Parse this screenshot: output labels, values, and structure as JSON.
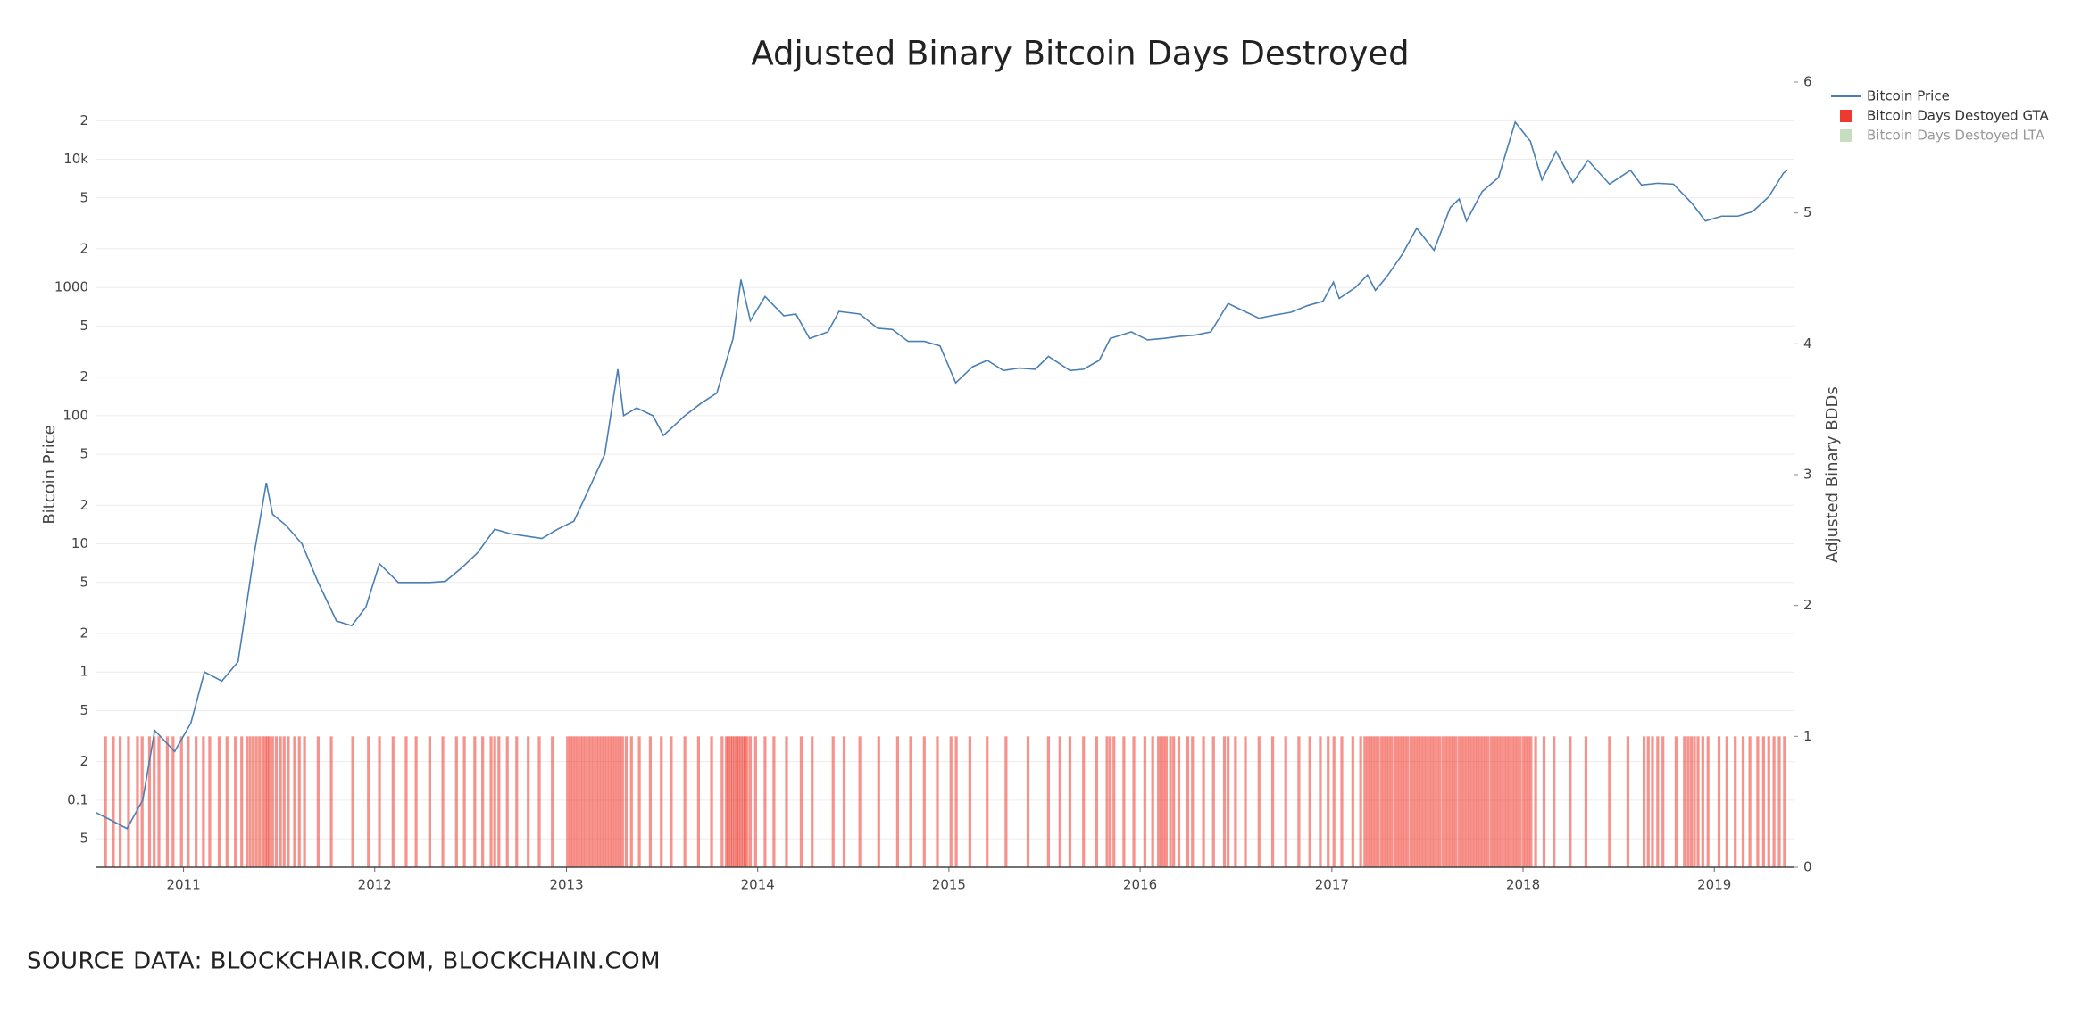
{
  "chart_data": {
    "type": "combo",
    "title": "Adjusted Binary Bitcoin Days Destroyed",
    "y_label": "Bitcoin Price",
    "y2_label": "Adjusted Binary BDDs",
    "source": "SOURCE DATA: BLOCKCHAIR.COM, BLOCKCHAIN.COM",
    "log_y": true,
    "grid": true,
    "legend_position": "top-right",
    "xlim": [
      "2010-07-17",
      "2019-06-03"
    ],
    "xticks": [
      {
        "value": "2011-01-01",
        "label": "2011"
      },
      {
        "value": "2012-01-01",
        "label": "2012"
      },
      {
        "value": "2013-01-01",
        "label": "2013"
      },
      {
        "value": "2014-01-01",
        "label": "2014"
      },
      {
        "value": "2015-01-01",
        "label": "2015"
      },
      {
        "value": "2016-01-01",
        "label": "2016"
      },
      {
        "value": "2017-01-01",
        "label": "2017"
      },
      {
        "value": "2018-01-01",
        "label": "2018"
      },
      {
        "value": "2019-01-01",
        "label": "2019"
      }
    ],
    "ylim": [
      0.03,
      40000
    ],
    "yticks": [
      {
        "value": 0.05,
        "label": "5"
      },
      0.1,
      {
        "value": 0.2,
        "label": "2"
      },
      {
        "value": 0.5,
        "label": "5"
      },
      1,
      2,
      5,
      10,
      {
        "value": 20,
        "label": "2"
      },
      {
        "value": 50,
        "label": "5"
      },
      100,
      {
        "value": 200,
        "label": "2"
      },
      {
        "value": 500,
        "label": "5"
      },
      1000,
      {
        "value": 2000,
        "label": "2"
      },
      {
        "value": 5000,
        "label": "5"
      },
      {
        "value": 10000,
        "label": "10k"
      },
      {
        "value": 20000,
        "label": "2"
      }
    ],
    "y2lim": [
      0,
      6
    ],
    "y2ticks": [
      0,
      1,
      2,
      3,
      4,
      5,
      6
    ],
    "series": [
      {
        "name": "Bitcoin Price",
        "type": "line",
        "axis": "y",
        "color": "#4a7fb5",
        "x": [
          "2010-07-18",
          "2010-08-15",
          "2010-09-15",
          "2010-10-15",
          "2010-11-07",
          "2010-12-15",
          "2011-01-15",
          "2011-02-10",
          "2011-03-15",
          "2011-04-15",
          "2011-05-15",
          "2011-06-08",
          "2011-06-20",
          "2011-07-15",
          "2011-08-15",
          "2011-09-15",
          "2011-10-20",
          "2011-11-18",
          "2011-12-15",
          "2012-01-10",
          "2012-02-15",
          "2012-03-15",
          "2012-04-15",
          "2012-05-15",
          "2012-06-15",
          "2012-07-15",
          "2012-08-17",
          "2012-09-15",
          "2012-10-15",
          "2012-11-15",
          "2012-12-15",
          "2013-01-15",
          "2013-02-15",
          "2013-03-15",
          "2013-04-09",
          "2013-04-20",
          "2013-05-15",
          "2013-06-15",
          "2013-07-05",
          "2013-08-15",
          "2013-09-15",
          "2013-10-15",
          "2013-11-15",
          "2013-11-30",
          "2013-12-18",
          "2014-01-15",
          "2014-02-20",
          "2014-03-15",
          "2014-04-10",
          "2014-05-15",
          "2014-06-05",
          "2014-07-15",
          "2014-08-18",
          "2014-09-15",
          "2014-10-15",
          "2014-11-15",
          "2014-12-15",
          "2015-01-14",
          "2015-02-15",
          "2015-03-15",
          "2015-04-15",
          "2015-05-15",
          "2015-06-15",
          "2015-07-10",
          "2015-08-20",
          "2015-09-15",
          "2015-10-15",
          "2015-11-05",
          "2015-12-15",
          "2016-01-15",
          "2016-02-15",
          "2016-03-15",
          "2016-04-15",
          "2016-05-15",
          "2016-06-17",
          "2016-07-15",
          "2016-08-15",
          "2016-09-15",
          "2016-10-15",
          "2016-11-15",
          "2016-12-15",
          "2017-01-04",
          "2017-01-15",
          "2017-02-15",
          "2017-03-10",
          "2017-03-25",
          "2017-04-15",
          "2017-05-15",
          "2017-06-12",
          "2017-07-15",
          "2017-08-15",
          "2017-09-01",
          "2017-09-15",
          "2017-10-15",
          "2017-11-15",
          "2017-12-17",
          "2018-01-15",
          "2018-02-06",
          "2018-03-05",
          "2018-04-06",
          "2018-05-05",
          "2018-06-15",
          "2018-07-25",
          "2018-08-15",
          "2018-09-15",
          "2018-10-15",
          "2018-11-20",
          "2018-12-15",
          "2019-01-15",
          "2019-02-15",
          "2019-03-15",
          "2019-04-15",
          "2019-05-13",
          "2019-05-20"
        ],
        "values": [
          0.08,
          0.07,
          0.06,
          0.1,
          0.35,
          0.24,
          0.4,
          1.0,
          0.85,
          1.2,
          8,
          30,
          17,
          14,
          10,
          5,
          2.5,
          2.3,
          3.2,
          7,
          5,
          5,
          5,
          5.1,
          6.5,
          8.5,
          13,
          12,
          11.5,
          11,
          13,
          15,
          28,
          50,
          230,
          100,
          115,
          100,
          70,
          100,
          125,
          150,
          400,
          1150,
          550,
          850,
          600,
          620,
          400,
          450,
          650,
          620,
          480,
          470,
          380,
          380,
          350,
          180,
          240,
          270,
          225,
          235,
          230,
          290,
          225,
          230,
          270,
          400,
          450,
          390,
          400,
          415,
          425,
          450,
          750,
          660,
          575,
          610,
          640,
          720,
          780,
          1100,
          820,
          1000,
          1250,
          950,
          1200,
          1800,
          2900,
          1950,
          4200,
          4900,
          3300,
          5600,
          7200,
          19500,
          13800,
          6900,
          11500,
          6600,
          9800,
          6400,
          8200,
          6300,
          6500,
          6400,
          4500,
          3300,
          3600,
          3600,
          3900,
          5100,
          7800,
          8200
        ]
      },
      {
        "name": "Bitcoin Days Destoyed GTA",
        "type": "bar",
        "axis": "y2",
        "color": "#ee3a2e",
        "x": [
          "2010-08-05",
          "2010-08-20",
          "2010-09-02",
          "2010-09-18",
          "2010-10-05",
          "2010-10-14",
          "2010-10-28",
          "2010-11-06",
          "2010-11-15",
          "2010-12-01",
          "2010-12-12",
          "2010-12-28",
          "2011-01-10",
          "2011-01-25",
          "2011-02-08",
          "2011-02-20",
          "2011-03-10",
          "2011-03-25",
          "2011-04-10",
          "2011-04-22",
          "2011-05-02",
          "2011-05-08",
          "2011-05-14",
          "2011-05-20",
          "2011-05-26",
          "2011-06-01",
          "2011-06-06",
          "2011-06-10",
          "2011-06-14",
          "2011-06-20",
          "2011-06-27",
          "2011-07-05",
          "2011-07-12",
          "2011-07-20",
          "2011-08-01",
          "2011-08-10",
          "2011-08-20",
          "2011-09-15",
          "2011-10-10",
          "2011-11-20",
          "2011-12-20",
          "2012-01-10",
          "2012-02-05",
          "2012-03-01",
          "2012-03-20",
          "2012-04-15",
          "2012-05-10",
          "2012-06-05",
          "2012-06-20",
          "2012-07-10",
          "2012-07-25",
          "2012-08-10",
          "2012-08-17",
          "2012-08-25",
          "2012-09-10",
          "2012-09-28",
          "2012-10-20",
          "2012-11-10",
          "2012-12-05",
          "2013-01-03",
          "2013-01-08",
          "2013-01-13",
          "2013-01-18",
          "2013-01-23",
          "2013-01-28",
          "2013-02-02",
          "2013-02-07",
          "2013-02-12",
          "2013-02-17",
          "2013-02-22",
          "2013-02-27",
          "2013-03-04",
          "2013-03-09",
          "2013-03-14",
          "2013-03-19",
          "2013-03-24",
          "2013-03-29",
          "2013-04-03",
          "2013-04-08",
          "2013-04-13",
          "2013-04-18",
          "2013-04-25",
          "2013-05-05",
          "2013-05-20",
          "2013-06-10",
          "2013-07-01",
          "2013-07-20",
          "2013-08-15",
          "2013-09-10",
          "2013-10-05",
          "2013-10-25",
          "2013-11-02",
          "2013-11-06",
          "2013-11-10",
          "2013-11-14",
          "2013-11-18",
          "2013-11-22",
          "2013-11-26",
          "2013-11-30",
          "2013-12-04",
          "2013-12-08",
          "2013-12-12",
          "2013-12-18",
          "2013-12-28",
          "2014-01-15",
          "2014-02-01",
          "2014-02-25",
          "2014-03-25",
          "2014-04-15",
          "2014-05-25",
          "2014-06-15",
          "2014-07-15",
          "2014-08-20",
          "2014-09-25",
          "2014-10-20",
          "2014-11-15",
          "2014-12-10",
          "2015-01-05",
          "2015-01-15",
          "2015-02-10",
          "2015-03-15",
          "2015-04-20",
          "2015-06-01",
          "2015-07-10",
          "2015-08-01",
          "2015-08-20",
          "2015-09-15",
          "2015-10-10",
          "2015-10-30",
          "2015-11-05",
          "2015-11-12",
          "2015-12-01",
          "2015-12-20",
          "2016-01-10",
          "2016-01-25",
          "2016-02-05",
          "2016-02-10",
          "2016-02-15",
          "2016-02-20",
          "2016-02-28",
          "2016-03-05",
          "2016-03-15",
          "2016-04-01",
          "2016-04-10",
          "2016-05-01",
          "2016-05-20",
          "2016-06-10",
          "2016-06-17",
          "2016-07-01",
          "2016-07-20",
          "2016-08-15",
          "2016-09-10",
          "2016-10-05",
          "2016-10-30",
          "2016-11-20",
          "2016-12-10",
          "2016-12-25",
          "2017-01-05",
          "2017-01-20",
          "2017-02-10",
          "2017-02-25",
          "2017-03-05",
          "2017-03-10",
          "2017-03-15",
          "2017-03-20",
          "2017-03-25",
          "2017-03-30",
          "2017-04-05",
          "2017-04-10",
          "2017-04-15",
          "2017-04-20",
          "2017-04-25",
          "2017-05-01",
          "2017-05-06",
          "2017-05-11",
          "2017-05-16",
          "2017-05-21",
          "2017-05-26",
          "2017-06-01",
          "2017-06-06",
          "2017-06-11",
          "2017-06-16",
          "2017-06-21",
          "2017-06-26",
          "2017-07-01",
          "2017-07-06",
          "2017-07-11",
          "2017-07-16",
          "2017-07-21",
          "2017-07-26",
          "2017-08-01",
          "2017-08-06",
          "2017-08-11",
          "2017-08-16",
          "2017-08-21",
          "2017-08-26",
          "2017-09-01",
          "2017-09-06",
          "2017-09-11",
          "2017-09-16",
          "2017-09-21",
          "2017-09-26",
          "2017-10-01",
          "2017-10-06",
          "2017-10-11",
          "2017-10-16",
          "2017-10-21",
          "2017-10-26",
          "2017-11-01",
          "2017-11-06",
          "2017-11-11",
          "2017-11-16",
          "2017-11-21",
          "2017-11-26",
          "2017-12-01",
          "2017-12-06",
          "2017-12-11",
          "2017-12-16",
          "2017-12-21",
          "2017-12-26",
          "2018-01-01",
          "2018-01-06",
          "2018-01-11",
          "2018-01-16",
          "2018-01-25",
          "2018-02-10",
          "2018-03-01",
          "2018-04-01",
          "2018-05-01",
          "2018-06-15",
          "2018-07-20",
          "2018-08-20",
          "2018-08-28",
          "2018-09-05",
          "2018-09-15",
          "2018-09-25",
          "2018-10-20",
          "2018-11-05",
          "2018-11-12",
          "2018-11-18",
          "2018-11-24",
          "2018-12-01",
          "2018-12-10",
          "2018-12-20",
          "2019-01-10",
          "2019-01-25",
          "2019-02-10",
          "2019-02-25",
          "2019-03-10",
          "2019-03-25",
          "2019-04-05",
          "2019-04-15",
          "2019-04-25",
          "2019-05-05",
          "2019-05-15"
        ],
        "values": [
          1,
          1,
          1,
          1,
          1,
          1,
          1,
          1,
          1,
          1,
          1,
          1,
          1,
          1,
          1,
          1,
          1,
          1,
          1,
          1,
          1,
          1,
          1,
          1,
          1,
          1,
          1,
          1,
          1,
          1,
          1,
          1,
          1,
          1,
          1,
          1,
          1,
          1,
          1,
          1,
          1,
          1,
          1,
          1,
          1,
          1,
          1,
          1,
          1,
          1,
          1,
          1,
          1,
          1,
          1,
          1,
          1,
          1,
          1,
          1,
          1,
          1,
          1,
          1,
          1,
          1,
          1,
          1,
          1,
          1,
          1,
          1,
          1,
          1,
          1,
          1,
          1,
          1,
          1,
          1,
          1,
          1,
          1,
          1,
          1,
          1,
          1,
          1,
          1,
          1,
          1,
          1,
          1,
          1,
          1,
          1,
          1,
          1,
          1,
          1,
          1,
          1,
          1,
          1,
          1,
          1,
          1,
          1,
          1,
          1,
          1,
          1,
          1,
          1,
          1,
          1,
          1,
          1,
          1,
          1,
          1,
          1,
          1,
          1,
          1,
          1,
          1,
          1,
          1,
          1,
          1,
          1,
          1,
          1,
          1,
          1,
          1,
          1,
          1,
          1,
          1,
          1,
          1,
          1,
          1,
          1,
          1,
          1,
          1,
          1,
          1,
          1,
          1,
          1,
          1,
          1,
          1,
          1,
          1,
          1,
          1,
          1,
          1,
          1,
          1,
          1,
          1,
          1,
          1,
          1,
          1,
          1,
          1,
          1,
          1,
          1,
          1,
          1,
          1,
          1,
          1,
          1,
          1,
          1,
          1,
          1,
          1,
          1,
          1,
          1,
          1,
          1,
          1,
          1,
          1,
          1,
          1,
          1,
          1,
          1,
          1,
          1,
          1,
          1,
          1,
          1,
          1,
          1,
          1,
          1,
          1,
          1,
          1,
          1,
          1,
          1,
          1,
          1,
          1,
          1,
          1,
          1,
          1,
          1,
          1,
          1,
          1,
          1,
          1,
          1,
          1,
          1,
          1,
          1,
          1,
          1,
          1,
          1,
          1,
          1,
          1,
          1,
          1,
          1,
          1,
          1,
          1,
          1,
          1,
          1,
          1,
          1,
          1,
          1,
          1
        ]
      },
      {
        "name": "Bitcoin Days Destoyed LTA",
        "type": "bar",
        "axis": "y2",
        "color": "#8fbc7f",
        "visible": false,
        "x": [],
        "values": []
      }
    ]
  }
}
